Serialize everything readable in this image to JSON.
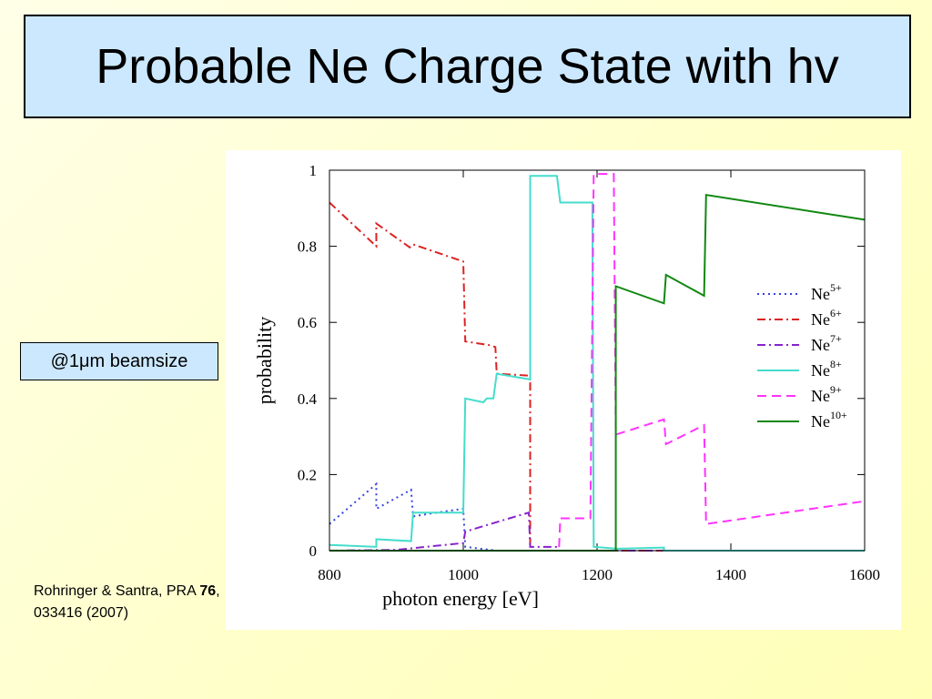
{
  "title": "Probable Ne Charge State with hv",
  "note": "@1μm beamsize",
  "citation": {
    "before": "Rohringer & Santra, PRA ",
    "bold": "76",
    "after": ", 033416 (2007)"
  },
  "chart_data": {
    "type": "line",
    "xlabel": "photon energy [eV]",
    "ylabel": "probability",
    "xlim": [
      800,
      1600
    ],
    "ylim": [
      0,
      1
    ],
    "xticks": [
      800,
      1000,
      1200,
      1400,
      1600
    ],
    "yticks": [
      0,
      0.2,
      0.4,
      0.6,
      0.8,
      1
    ],
    "series": [
      {
        "name": "Ne",
        "superscript": "5+",
        "color": "#3344dd",
        "style": "dotted",
        "x": [
          800,
          870,
          870,
          922,
          925,
          960,
          1000,
          1003,
          1050,
          1100
        ],
        "values": [
          0.07,
          0.175,
          0.11,
          0.16,
          0.09,
          0.1,
          0.11,
          0.01,
          0,
          0
        ]
      },
      {
        "name": "Ne",
        "superscript": "6+",
        "color": "#dd2222",
        "style": "dashdot",
        "x": [
          800,
          870,
          870,
          920,
          925,
          1000,
          1003,
          1040,
          1048,
          1050,
          1100,
          1100,
          1600
        ],
        "values": [
          0.915,
          0.8,
          0.86,
          0.797,
          0.805,
          0.76,
          0.55,
          0.54,
          0.535,
          0.465,
          0.46,
          0,
          0
        ]
      },
      {
        "name": "Ne",
        "superscript": "7+",
        "color": "#8822cc",
        "style": "dashdot",
        "x": [
          800,
          900,
          1000,
          1003,
          1050,
          1098,
          1100,
          1140,
          1143,
          1600
        ],
        "values": [
          0,
          0.002,
          0.02,
          0.05,
          0.075,
          0.1,
          0.01,
          0.01,
          0,
          0
        ]
      },
      {
        "name": "Ne",
        "superscript": "8+",
        "color": "#44ddcc",
        "style": "solid",
        "x": [
          800,
          870,
          870,
          922,
          925,
          1000,
          1003,
          1030,
          1035,
          1045,
          1050,
          1100,
          1100,
          1140,
          1145,
          1193,
          1195,
          1230,
          1300,
          1300,
          1600
        ],
        "values": [
          0.015,
          0.01,
          0.03,
          0.025,
          0.1,
          0.1,
          0.4,
          0.39,
          0.4,
          0.4,
          0.465,
          0.45,
          0.985,
          0.985,
          0.915,
          0.915,
          0.01,
          0.005,
          0.008,
          0,
          0
        ]
      },
      {
        "name": "Ne",
        "superscript": "9+",
        "color": "#ff33ff",
        "style": "dashed",
        "x": [
          800,
          1143,
          1145,
          1190,
          1195,
          1225,
          1228,
          1300,
          1303,
          1360,
          1363,
          1600
        ],
        "values": [
          0,
          0,
          0.085,
          0.085,
          0.99,
          0.99,
          0.305,
          0.345,
          0.28,
          0.33,
          0.07,
          0.13
        ]
      },
      {
        "name": "Ne",
        "superscript": "10+",
        "color": "#118811",
        "style": "solid",
        "x": [
          800,
          1228,
          1228,
          1300,
          1303,
          1360,
          1363,
          1600
        ],
        "values": [
          0,
          0,
          0.695,
          0.65,
          0.725,
          0.67,
          0.935,
          0.87
        ]
      }
    ]
  }
}
